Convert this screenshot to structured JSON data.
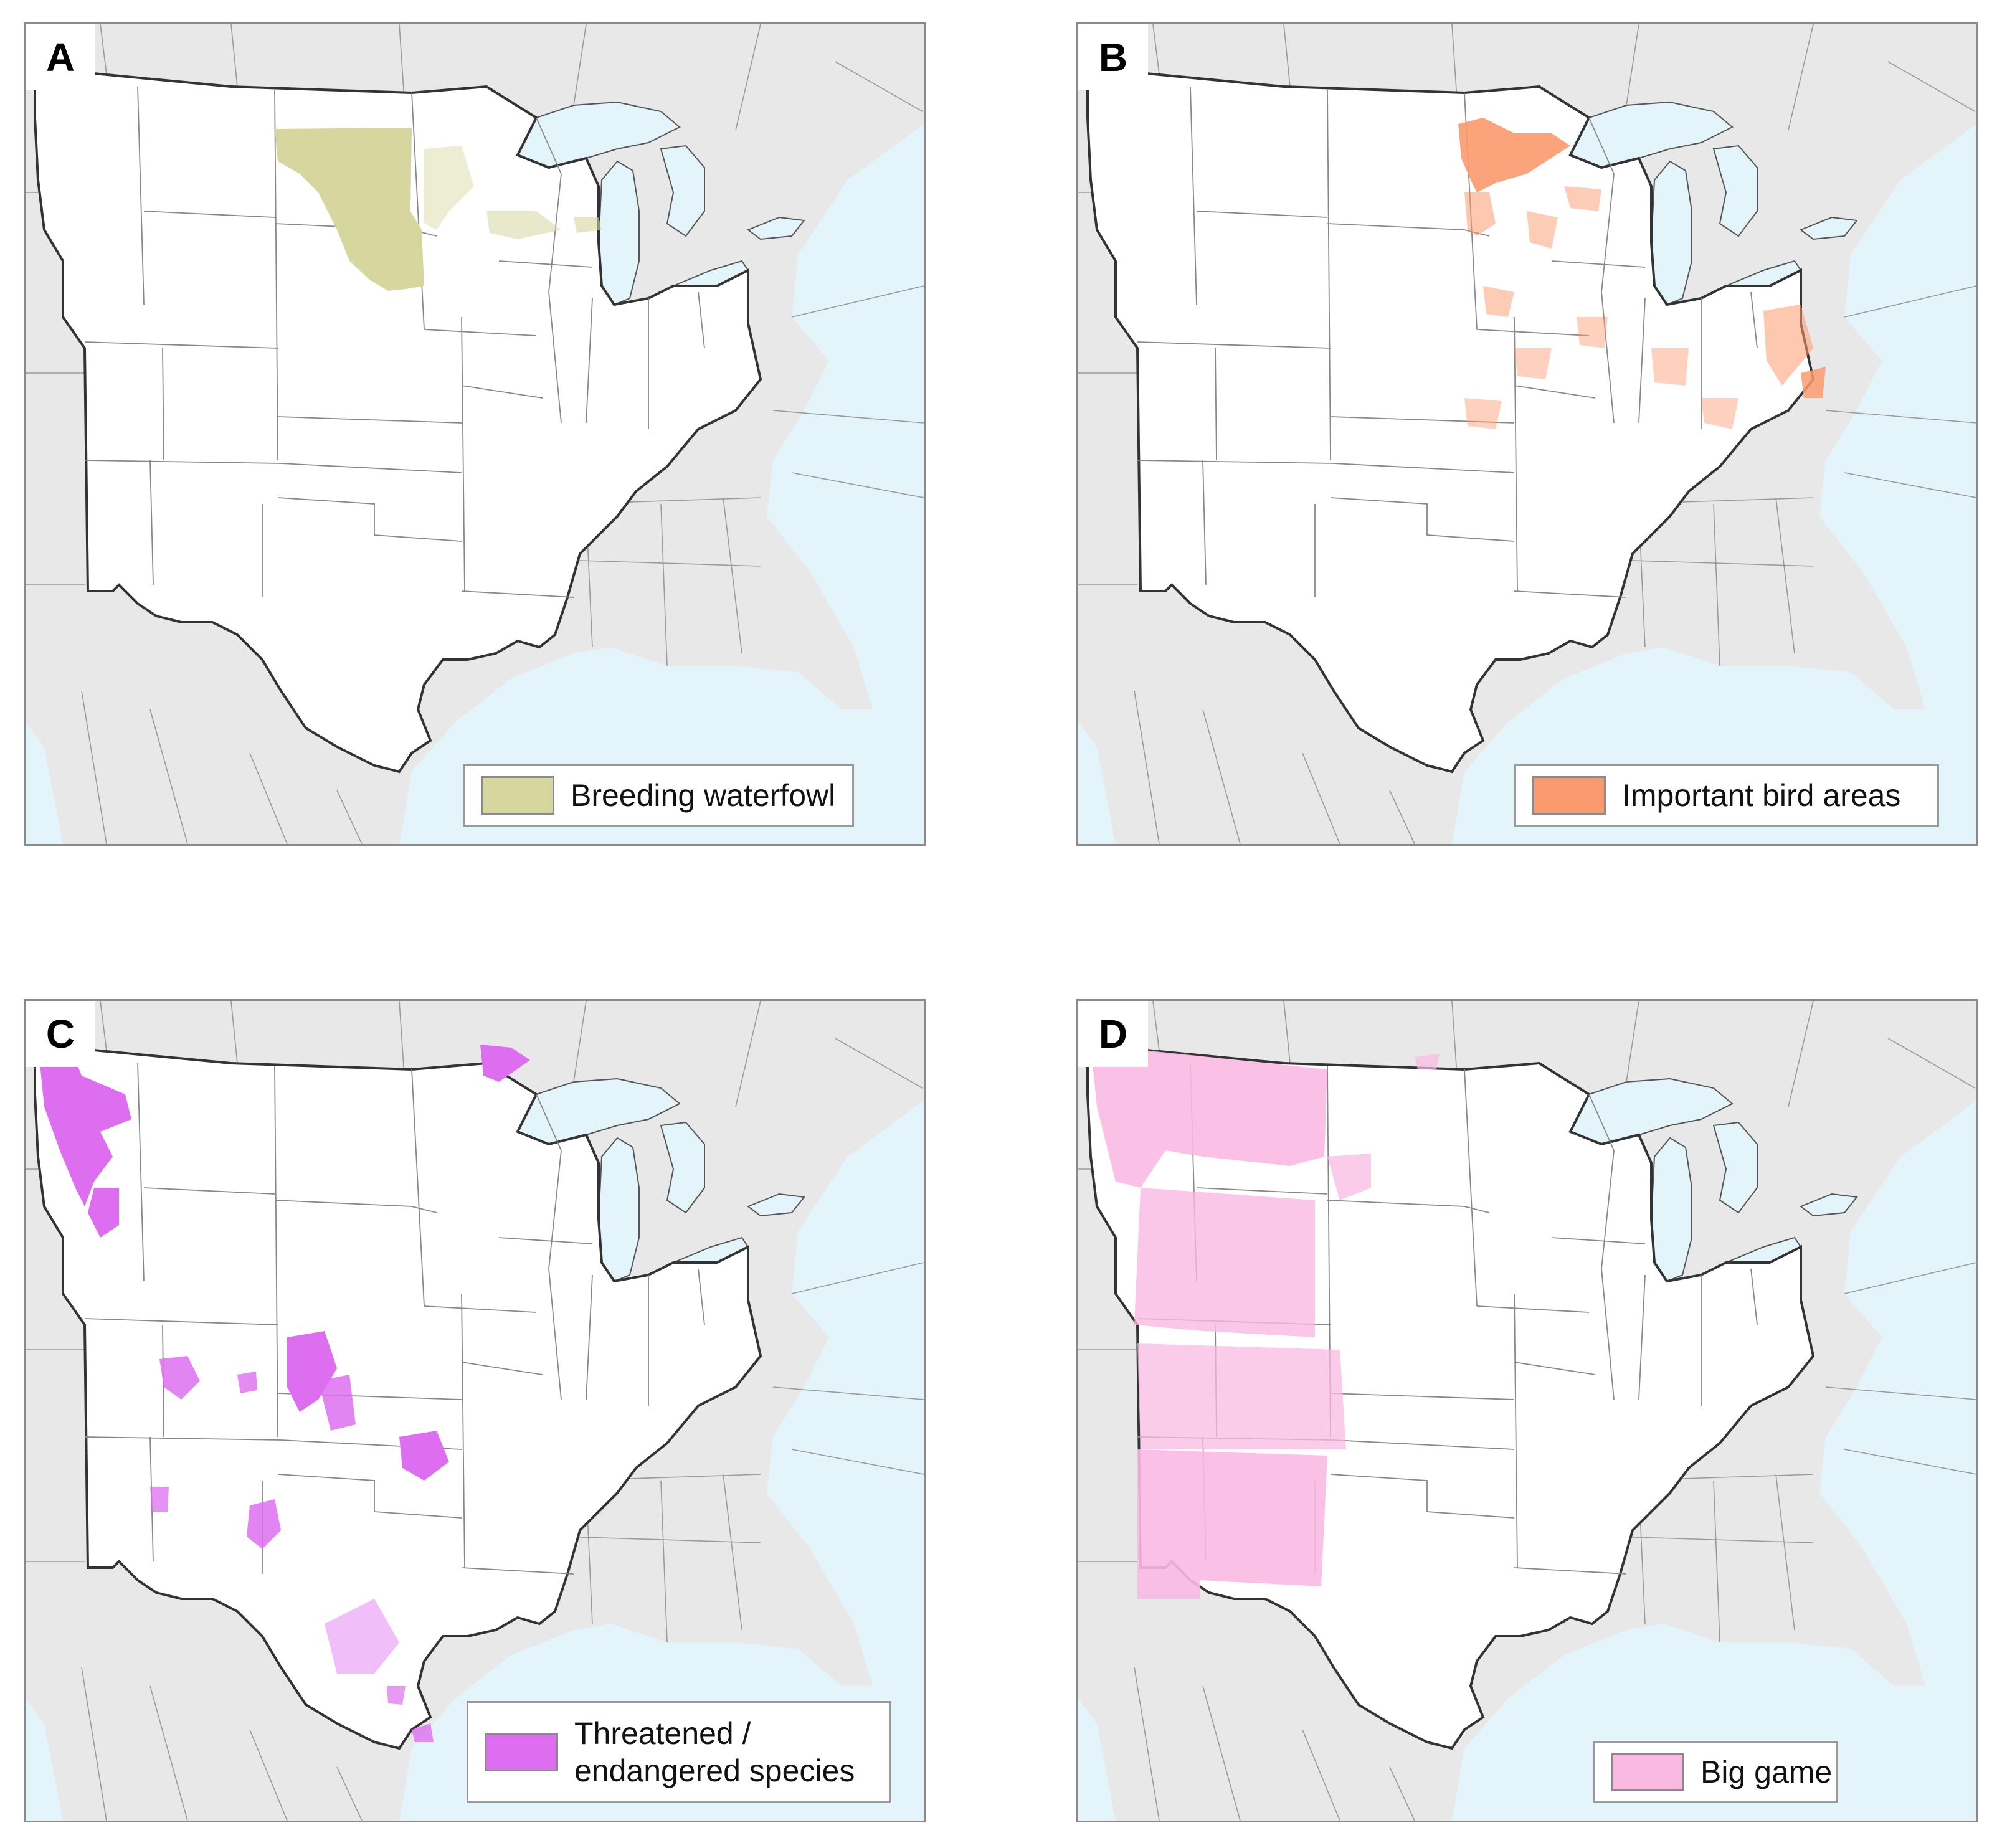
{
  "panels": [
    {
      "letter": "A",
      "legend": "Breeding waterfowl",
      "color": "#d6d69e"
    },
    {
      "letter": "B",
      "legend": "Important bird areas",
      "color": "#fb9a6e"
    },
    {
      "letter": "C",
      "legend": "Threatened /\nendangered species",
      "color": "#dd6ef0"
    },
    {
      "letter": "D",
      "legend": "Big game",
      "color": "#f9b9e3"
    }
  ],
  "colors": {
    "land": "#e8e8e8",
    "water": "#e3f4fb",
    "region": "#ffffff"
  }
}
